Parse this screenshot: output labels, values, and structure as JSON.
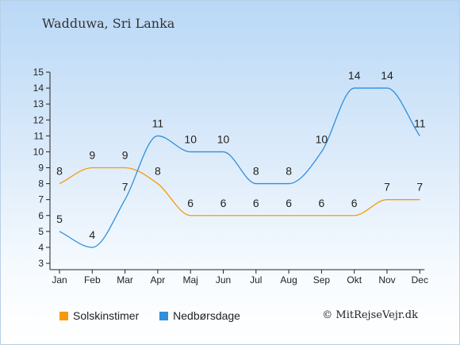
{
  "chart_data": {
    "type": "line",
    "title": "Wadduwa, Sri Lanka",
    "categories": [
      "Jan",
      "Feb",
      "Mar",
      "Apr",
      "Maj",
      "Jun",
      "Jul",
      "Aug",
      "Sep",
      "Okt",
      "Nov",
      "Dec"
    ],
    "ylim": [
      3,
      15
    ],
    "yticks": [
      3,
      4,
      5,
      6,
      7,
      8,
      9,
      10,
      11,
      12,
      13,
      14,
      15
    ],
    "grid": false,
    "legend_position": "bottom-left",
    "series": [
      {
        "name": "Solskinstimer",
        "color": "#f59b0b",
        "values": [
          8,
          9,
          9,
          8,
          6,
          6,
          6,
          6,
          6,
          6,
          7,
          7
        ]
      },
      {
        "name": "Nedbørsdage",
        "color": "#2f8fdc",
        "values": [
          5,
          4,
          7,
          11,
          10,
          10,
          8,
          8,
          10,
          14,
          14,
          11
        ]
      }
    ]
  },
  "copyright": "© MitRejseVejr.dk"
}
